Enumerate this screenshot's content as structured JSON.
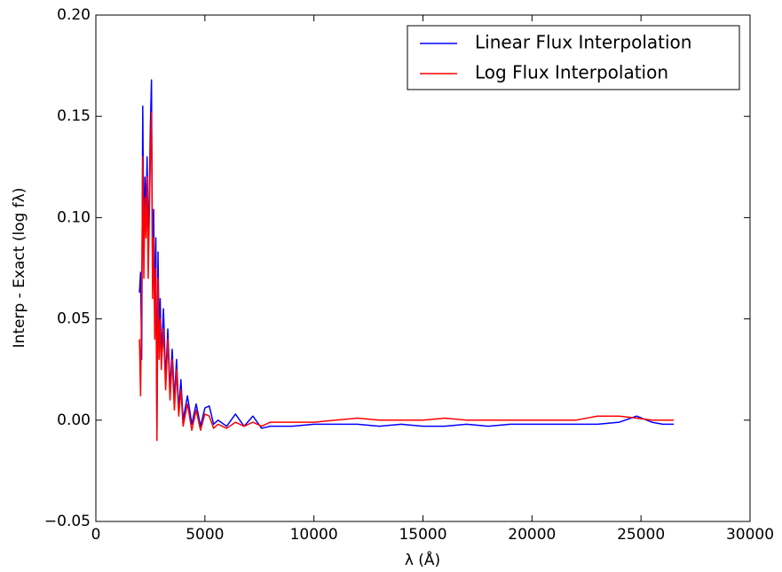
{
  "chart_data": {
    "type": "line",
    "x_label": "λ (Å)",
    "y_label": "Interp - Exact (log fλ)",
    "x": [
      2000,
      2050,
      2100,
      2150,
      2200,
      2250,
      2300,
      2350,
      2400,
      2450,
      2500,
      2550,
      2600,
      2650,
      2700,
      2750,
      2800,
      2850,
      2900,
      2950,
      3000,
      3100,
      3200,
      3300,
      3400,
      3500,
      3600,
      3700,
      3800,
      3900,
      4000,
      4200,
      4400,
      4600,
      4800,
      5000,
      5200,
      5400,
      5600,
      6000,
      6400,
      6800,
      7200,
      7600,
      8000,
      9000,
      10000,
      11000,
      12000,
      13000,
      14000,
      15000,
      16000,
      17000,
      18000,
      19000,
      20000,
      21000,
      22000,
      23000,
      24000,
      24800,
      25500,
      26000,
      26500
    ],
    "series": [
      {
        "name": "Linear Flux Interpolation",
        "color": "#0000ff",
        "values": [
          0.063,
          0.073,
          0.03,
          0.155,
          0.08,
          0.12,
          0.1,
          0.13,
          0.09,
          0.11,
          0.145,
          0.168,
          0.07,
          0.104,
          0.05,
          0.09,
          -0.005,
          0.083,
          0.04,
          0.06,
          0.03,
          0.055,
          0.02,
          0.045,
          0.015,
          0.035,
          0.01,
          0.03,
          0.005,
          0.02,
          0.0,
          0.012,
          -0.002,
          0.008,
          -0.003,
          0.006,
          0.007,
          -0.002,
          0.0,
          -0.003,
          0.003,
          -0.003,
          0.002,
          -0.004,
          -0.003,
          -0.003,
          -0.002,
          -0.002,
          -0.002,
          -0.003,
          -0.002,
          -0.003,
          -0.003,
          -0.002,
          -0.003,
          -0.002,
          -0.002,
          -0.002,
          -0.002,
          -0.002,
          -0.001,
          0.002,
          -0.001,
          -0.002,
          -0.002
        ]
      },
      {
        "name": "Log Flux Interpolation",
        "color": "#ff0000",
        "values": [
          0.04,
          0.012,
          0.06,
          0.13,
          0.07,
          0.11,
          0.09,
          0.12,
          0.07,
          0.1,
          0.13,
          0.152,
          0.06,
          0.09,
          0.04,
          0.075,
          -0.01,
          0.07,
          0.03,
          0.05,
          0.025,
          0.045,
          0.015,
          0.04,
          0.01,
          0.03,
          0.005,
          0.025,
          0.002,
          0.015,
          -0.003,
          0.008,
          -0.005,
          0.005,
          -0.005,
          0.003,
          0.002,
          -0.004,
          -0.002,
          -0.004,
          -0.001,
          -0.003,
          -0.001,
          -0.003,
          -0.001,
          -0.001,
          -0.001,
          0.0,
          0.001,
          0.0,
          0.0,
          0.0,
          0.001,
          0.0,
          0.0,
          0.0,
          0.0,
          0.0,
          0.0,
          0.002,
          0.002,
          0.001,
          0.0,
          0.0,
          0.0
        ]
      }
    ],
    "xlim": [
      0,
      30000
    ],
    "xticks": [
      0,
      5000,
      10000,
      15000,
      20000,
      25000,
      30000
    ],
    "ylim": [
      -0.05,
      0.2
    ],
    "yticks": [
      {
        "value": -0.05,
        "label": "−0.05"
      },
      {
        "value": 0,
        "label": "0.00"
      },
      0.05,
      {
        "value": 0.1,
        "label": "0.10"
      },
      0.15,
      {
        "value": 0.2,
        "label": "0.20"
      }
    ],
    "legend": "upper right"
  }
}
